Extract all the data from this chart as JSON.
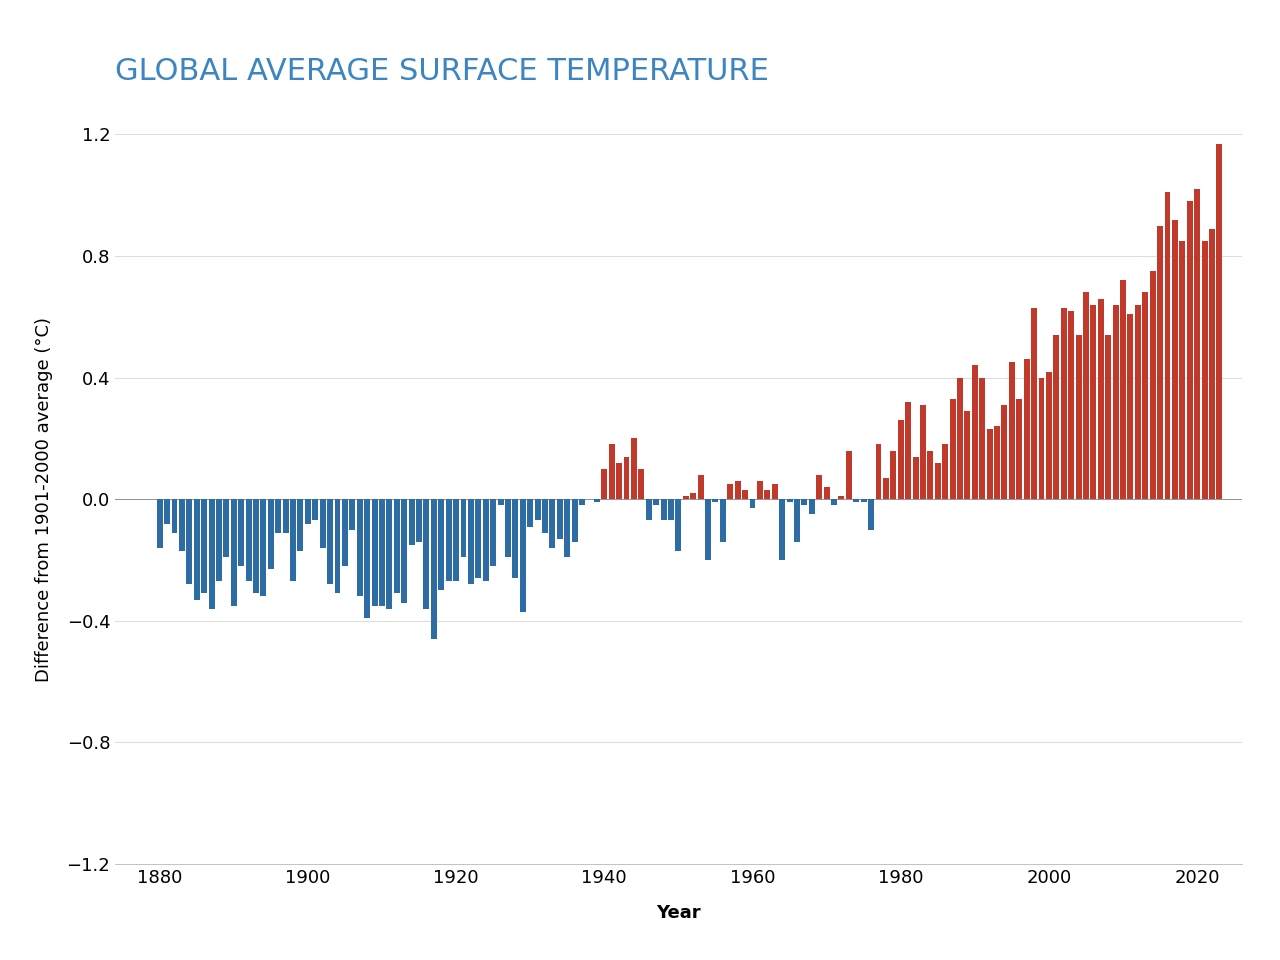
{
  "title": "GLOBAL AVERAGE SURFACE TEMPERATURE",
  "xlabel": "Year",
  "ylabel": "Difference from 1901-2000 average (°C)",
  "ylim": [
    -1.2,
    1.2
  ],
  "title_color": "#3d85c0",
  "background_color": "#ffffff",
  "bar_color_pos": "#C0392B",
  "bar_color_neg": "#2E6DA4",
  "years": [
    1880,
    1881,
    1882,
    1883,
    1884,
    1885,
    1886,
    1887,
    1888,
    1889,
    1890,
    1891,
    1892,
    1893,
    1894,
    1895,
    1896,
    1897,
    1898,
    1899,
    1900,
    1901,
    1902,
    1903,
    1904,
    1905,
    1906,
    1907,
    1908,
    1909,
    1910,
    1911,
    1912,
    1913,
    1914,
    1915,
    1916,
    1917,
    1918,
    1919,
    1920,
    1921,
    1922,
    1923,
    1924,
    1925,
    1926,
    1927,
    1928,
    1929,
    1930,
    1931,
    1932,
    1933,
    1934,
    1935,
    1936,
    1937,
    1938,
    1939,
    1940,
    1941,
    1942,
    1943,
    1944,
    1945,
    1946,
    1947,
    1948,
    1949,
    1950,
    1951,
    1952,
    1953,
    1954,
    1955,
    1956,
    1957,
    1958,
    1959,
    1960,
    1961,
    1962,
    1963,
    1964,
    1965,
    1966,
    1967,
    1968,
    1969,
    1970,
    1971,
    1972,
    1973,
    1974,
    1975,
    1976,
    1977,
    1978,
    1979,
    1980,
    1981,
    1982,
    1983,
    1984,
    1985,
    1986,
    1987,
    1988,
    1989,
    1990,
    1991,
    1992,
    1993,
    1994,
    1995,
    1996,
    1997,
    1998,
    1999,
    2000,
    2001,
    2002,
    2003,
    2004,
    2005,
    2006,
    2007,
    2008,
    2009,
    2010,
    2011,
    2012,
    2013,
    2014,
    2015,
    2016,
    2017,
    2018,
    2019,
    2020,
    2021,
    2022,
    2023
  ],
  "values": [
    -0.16,
    -0.08,
    -0.11,
    -0.17,
    -0.28,
    -0.33,
    -0.31,
    -0.36,
    -0.27,
    -0.19,
    -0.35,
    -0.22,
    -0.27,
    -0.31,
    -0.32,
    -0.23,
    -0.11,
    -0.11,
    -0.27,
    -0.17,
    -0.08,
    -0.07,
    -0.16,
    -0.28,
    -0.31,
    -0.22,
    -0.1,
    -0.32,
    -0.39,
    -0.35,
    -0.35,
    -0.36,
    -0.31,
    -0.34,
    -0.15,
    -0.14,
    -0.36,
    -0.46,
    -0.3,
    -0.27,
    -0.27,
    -0.19,
    -0.28,
    -0.26,
    -0.27,
    -0.22,
    -0.02,
    -0.19,
    -0.26,
    -0.37,
    -0.09,
    -0.07,
    -0.11,
    -0.16,
    -0.13,
    -0.19,
    -0.14,
    -0.02,
    -0.0,
    -0.01,
    0.1,
    0.18,
    0.12,
    0.14,
    0.2,
    0.1,
    -0.07,
    -0.02,
    -0.07,
    -0.07,
    -0.17,
    0.01,
    0.02,
    0.08,
    -0.2,
    -0.01,
    -0.14,
    0.05,
    0.06,
    0.03,
    -0.03,
    0.06,
    0.03,
    0.05,
    -0.2,
    -0.01,
    -0.14,
    -0.02,
    -0.05,
    0.08,
    0.04,
    -0.02,
    0.01,
    0.16,
    -0.01,
    -0.01,
    -0.1,
    0.18,
    0.07,
    0.16,
    0.26,
    0.32,
    0.14,
    0.31,
    0.16,
    0.12,
    0.18,
    0.33,
    0.4,
    0.29,
    0.44,
    0.4,
    0.23,
    0.24,
    0.31,
    0.45,
    0.33,
    0.46,
    0.63,
    0.4,
    0.42,
    0.54,
    0.63,
    0.62,
    0.54,
    0.68,
    0.64,
    0.66,
    0.54,
    0.64,
    0.72,
    0.61,
    0.64,
    0.68,
    0.75,
    0.9,
    1.01,
    0.92,
    0.85,
    0.98,
    1.02,
    0.85,
    0.89,
    1.17
  ],
  "xticks": [
    1880,
    1900,
    1920,
    1940,
    1960,
    1980,
    2000,
    2020
  ],
  "yticks": [
    -1.2,
    -0.8,
    -0.4,
    0,
    0.4,
    0.8,
    1.2
  ],
  "xlim": [
    1874,
    2026
  ],
  "grid_color": "#dddddd",
  "title_fontsize": 22,
  "axis_label_fontsize": 13,
  "tick_fontsize": 13
}
